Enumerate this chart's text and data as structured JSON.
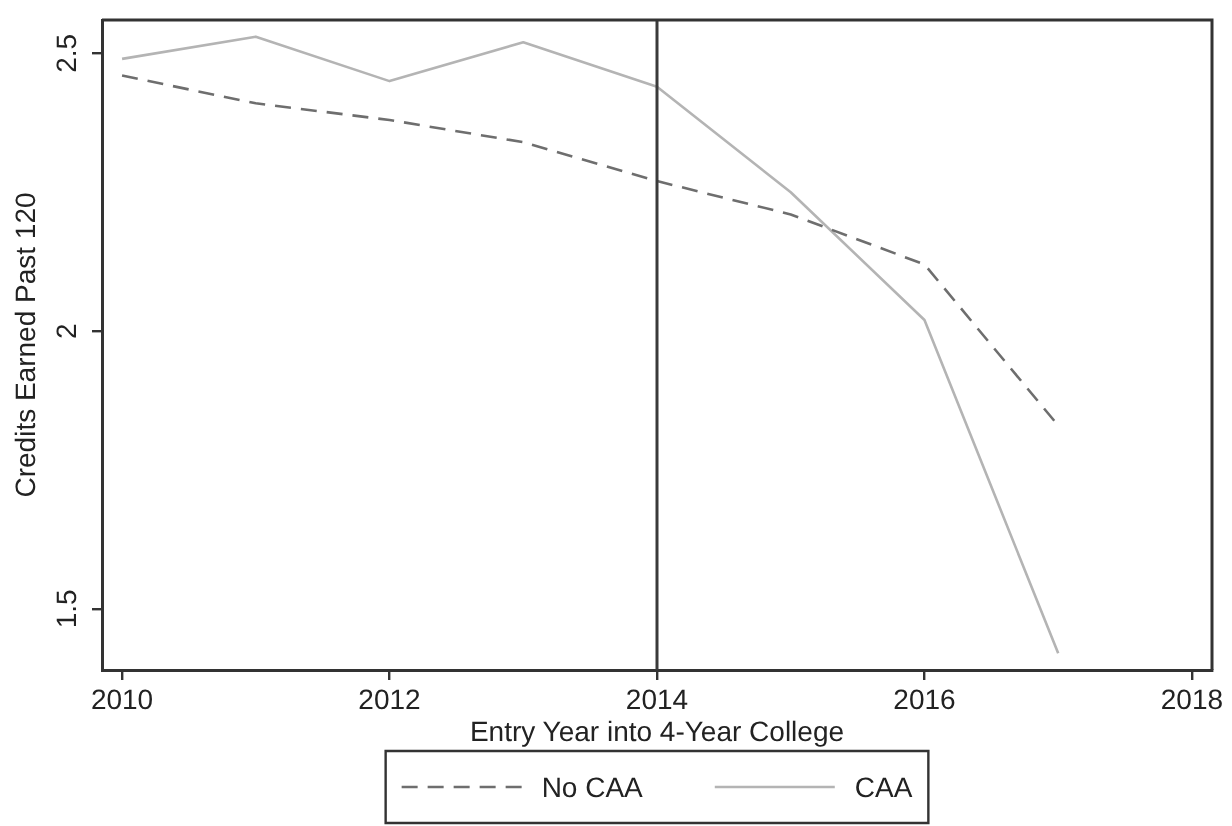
{
  "chart_data": {
    "type": "line",
    "xlabel": "Entry Year into 4-Year College",
    "ylabel": "Credits Earned Past 120",
    "x": [
      2010,
      2011,
      2012,
      2013,
      2014,
      2015,
      2016,
      2017
    ],
    "series": [
      {
        "name": "No CAA",
        "color": "#6e6e6e",
        "line_style": "dashed",
        "values": [
          2.46,
          2.41,
          2.38,
          2.34,
          2.27,
          2.21,
          2.12,
          1.83
        ]
      },
      {
        "name": "CAA",
        "color": "#b4b4b4",
        "line_style": "solid",
        "values": [
          2.49,
          2.53,
          2.45,
          2.52,
          2.44,
          2.25,
          2.02,
          1.42
        ]
      }
    ],
    "xlim": [
      2009.85,
      2018.15
    ],
    "xticks": [
      2010,
      2012,
      2014,
      2016,
      2018
    ],
    "ylim": [
      1.39,
      2.56
    ],
    "yticks": [
      1.5,
      2,
      2.5
    ],
    "grid": false,
    "legend": "bottom",
    "marker": "none",
    "ref_lines": [
      {
        "axis": "x",
        "value": 2014,
        "color": "#3a3a3a"
      }
    ]
  }
}
